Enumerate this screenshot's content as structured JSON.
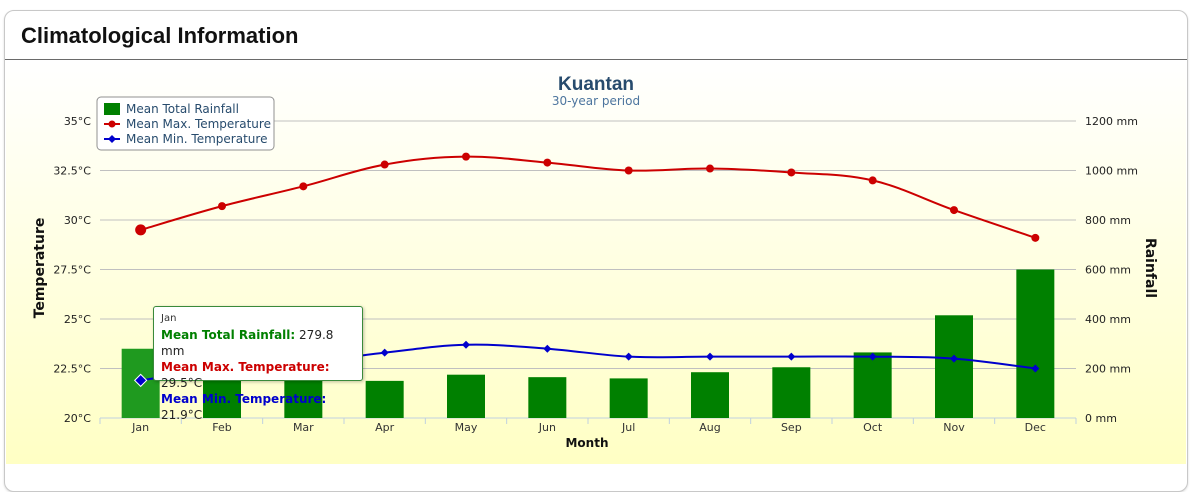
{
  "panel": {
    "title": "Climatological Information"
  },
  "chart_data": {
    "type": "bar",
    "title": "Kuantan",
    "subtitle": "30-year period",
    "xlabel": "Month",
    "ylabel_left": "Temperature",
    "ylabel_right": "Rainfall",
    "categories": [
      "Jan",
      "Feb",
      "Mar",
      "Apr",
      "May",
      "Jun",
      "Jul",
      "Aug",
      "Sep",
      "Oct",
      "Nov",
      "Dec"
    ],
    "series": [
      {
        "name": "Mean Total Rainfall",
        "type": "bar",
        "axis": "right",
        "unit": "mm",
        "color": "#008000",
        "values": [
          279.8,
          175,
          150,
          150,
          175,
          165,
          160,
          185,
          205,
          265,
          415,
          600
        ]
      },
      {
        "name": "Mean Max. Temperature",
        "type": "line",
        "axis": "left",
        "unit": "°C",
        "color": "#cc0000",
        "marker": "circle",
        "values": [
          29.5,
          30.7,
          31.7,
          32.8,
          33.2,
          32.9,
          32.5,
          32.6,
          32.4,
          32.0,
          30.5,
          29.1
        ]
      },
      {
        "name": "Mean Min. Temperature",
        "type": "line",
        "axis": "left",
        "unit": "°C",
        "color": "#0000cc",
        "marker": "diamond",
        "values": [
          21.9,
          22.5,
          22.8,
          23.3,
          23.7,
          23.5,
          23.1,
          23.1,
          23.1,
          23.1,
          23.0,
          22.5
        ]
      }
    ],
    "left_axis": {
      "min": 20,
      "max": 35,
      "step": 2.5,
      "tick_labels": [
        "20°C",
        "22.5°C",
        "25°C",
        "27.5°C",
        "30°C",
        "32.5°C",
        "35°C"
      ]
    },
    "right_axis": {
      "min": 0,
      "max": 1200,
      "step": 200,
      "tick_labels": [
        "0 mm",
        "200 mm",
        "400 mm",
        "600 mm",
        "800 mm",
        "1000 mm",
        "1200 mm"
      ]
    },
    "grid": true,
    "legend_position": "top-left",
    "highlighted_index": 0
  },
  "tooltip": {
    "month": "Jan",
    "rows": [
      {
        "label": "Mean Total Rainfall",
        "value": "279.8 mm",
        "color": "#008000"
      },
      {
        "label": "Mean Max. Temperature",
        "value": "29.5°C",
        "color": "#cc0000"
      },
      {
        "label": "Mean Min. Temperature",
        "value": "21.9°C",
        "color": "#0000cc"
      }
    ]
  }
}
